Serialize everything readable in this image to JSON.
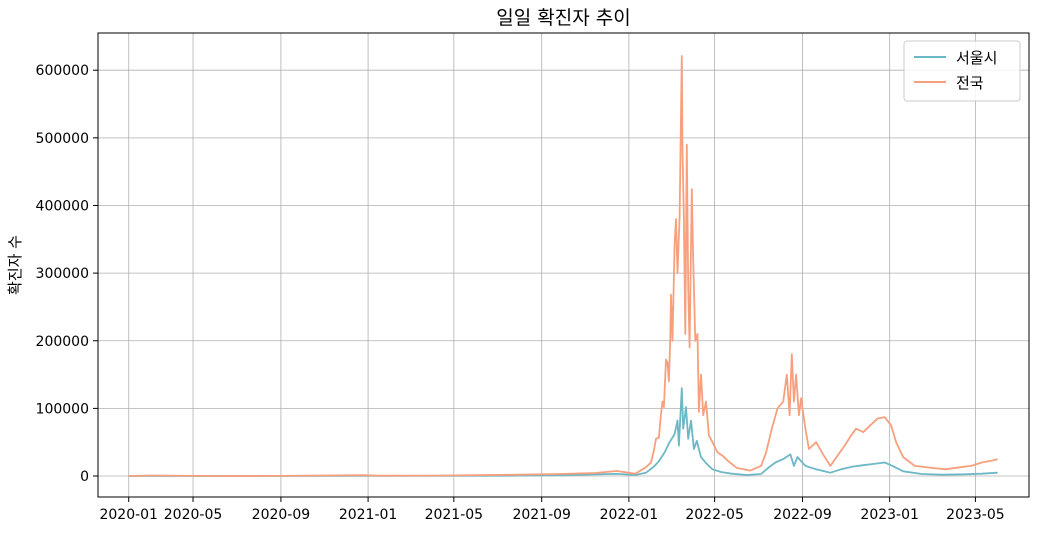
{
  "chart_data": {
    "type": "line",
    "title": "일일 확진자 추이",
    "xlabel": "",
    "ylabel": "확진자 수",
    "x_tick_labels": [
      "2020-01",
      "2020-05",
      "2020-09",
      "2021-01",
      "2021-05",
      "2021-09",
      "2022-01",
      "2022-05",
      "2022-09",
      "2023-01",
      "2023-05"
    ],
    "y_ticks": [
      0,
      100000,
      200000,
      300000,
      400000,
      500000,
      600000
    ],
    "y_tick_labels": [
      "0",
      "100000",
      "200000",
      "300000",
      "400000",
      "500000",
      "600000"
    ],
    "xlim": [
      "2019-12-20",
      "2023-07-15"
    ],
    "ylim": [
      -31000,
      655000
    ],
    "grid": true,
    "legend_position": "top-right",
    "series": [
      {
        "name": "서울시",
        "color": "#6db8c6",
        "points": [
          [
            "2020-02-01",
            0
          ],
          [
            "2020-06-01",
            20
          ],
          [
            "2020-09-01",
            60
          ],
          [
            "2020-12-15",
            350
          ],
          [
            "2021-01-10",
            250
          ],
          [
            "2021-04-01",
            150
          ],
          [
            "2021-07-15",
            550
          ],
          [
            "2021-09-25",
            1200
          ],
          [
            "2021-11-15",
            2500
          ],
          [
            "2021-12-15",
            3200
          ],
          [
            "2022-01-10",
            1500
          ],
          [
            "2022-01-25",
            5000
          ],
          [
            "2022-02-05",
            14000
          ],
          [
            "2022-02-12",
            22000
          ],
          [
            "2022-02-20",
            35000
          ],
          [
            "2022-02-27",
            50000
          ],
          [
            "2022-03-06",
            62000
          ],
          [
            "2022-03-10",
            82000
          ],
          [
            "2022-03-12",
            45000
          ],
          [
            "2022-03-16",
            130000
          ],
          [
            "2022-03-18",
            70000
          ],
          [
            "2022-03-22",
            102000
          ],
          [
            "2022-03-25",
            55000
          ],
          [
            "2022-03-29",
            82000
          ],
          [
            "2022-04-02",
            40000
          ],
          [
            "2022-04-06",
            52000
          ],
          [
            "2022-04-12",
            28000
          ],
          [
            "2022-04-20",
            18000
          ],
          [
            "2022-04-28",
            10000
          ],
          [
            "2022-05-10",
            6000
          ],
          [
            "2022-05-25",
            3500
          ],
          [
            "2022-06-15",
            1500
          ],
          [
            "2022-07-05",
            3000
          ],
          [
            "2022-07-15",
            12000
          ],
          [
            "2022-07-25",
            20000
          ],
          [
            "2022-08-05",
            25000
          ],
          [
            "2022-08-15",
            32000
          ],
          [
            "2022-08-20",
            15000
          ],
          [
            "2022-08-25",
            28000
          ],
          [
            "2022-09-05",
            15000
          ],
          [
            "2022-09-20",
            10000
          ],
          [
            "2022-10-10",
            5000
          ],
          [
            "2022-10-25",
            10000
          ],
          [
            "2022-11-10",
            14000
          ],
          [
            "2022-11-25",
            16000
          ],
          [
            "2022-12-10",
            18000
          ],
          [
            "2022-12-25",
            20000
          ],
          [
            "2023-01-05",
            15000
          ],
          [
            "2023-01-20",
            7000
          ],
          [
            "2023-02-15",
            3000
          ],
          [
            "2023-03-15",
            2000
          ],
          [
            "2023-04-15",
            2500
          ],
          [
            "2023-05-10",
            3500
          ],
          [
            "2023-06-01",
            5000
          ]
        ]
      },
      {
        "name": "전국",
        "color": "#f7a07e",
        "points": [
          [
            "2020-02-01",
            0
          ],
          [
            "2020-03-01",
            800
          ],
          [
            "2020-06-01",
            50
          ],
          [
            "2020-09-01",
            200
          ],
          [
            "2020-12-25",
            1200
          ],
          [
            "2021-01-15",
            500
          ],
          [
            "2021-04-01",
            600
          ],
          [
            "2021-07-20",
            1800
          ],
          [
            "2021-09-25",
            3000
          ],
          [
            "2021-11-15",
            4500
          ],
          [
            "2021-12-15",
            7500
          ],
          [
            "2022-01-10",
            3500
          ],
          [
            "2022-01-25",
            13000
          ],
          [
            "2022-02-01",
            20000
          ],
          [
            "2022-02-05",
            38000
          ],
          [
            "2022-02-08",
            55000
          ],
          [
            "2022-02-12",
            57000
          ],
          [
            "2022-02-15",
            92000
          ],
          [
            "2022-02-17",
            110000
          ],
          [
            "2022-02-19",
            102000
          ],
          [
            "2022-02-22",
            172000
          ],
          [
            "2022-02-24",
            168000
          ],
          [
            "2022-02-26",
            140000
          ],
          [
            "2022-02-28",
            205000
          ],
          [
            "2022-03-01",
            268000
          ],
          [
            "2022-03-03",
            200000
          ],
          [
            "2022-03-06",
            342000
          ],
          [
            "2022-03-08",
            380000
          ],
          [
            "2022-03-10",
            300000
          ],
          [
            "2022-03-13",
            383000
          ],
          [
            "2022-03-16",
            621000
          ],
          [
            "2022-03-17",
            480000
          ],
          [
            "2022-03-19",
            380000
          ],
          [
            "2022-03-21",
            210000
          ],
          [
            "2022-03-23",
            490000
          ],
          [
            "2022-03-25",
            280000
          ],
          [
            "2022-03-27",
            190000
          ],
          [
            "2022-03-30",
            424000
          ],
          [
            "2022-04-01",
            320000
          ],
          [
            "2022-04-04",
            200000
          ],
          [
            "2022-04-07",
            210000
          ],
          [
            "2022-04-09",
            95000
          ],
          [
            "2022-04-12",
            150000
          ],
          [
            "2022-04-15",
            90000
          ],
          [
            "2022-04-19",
            110000
          ],
          [
            "2022-04-23",
            60000
          ],
          [
            "2022-04-28",
            50000
          ],
          [
            "2022-05-05",
            35000
          ],
          [
            "2022-05-12",
            30000
          ],
          [
            "2022-05-20",
            22000
          ],
          [
            "2022-06-01",
            12000
          ],
          [
            "2022-06-20",
            8000
          ],
          [
            "2022-07-05",
            15000
          ],
          [
            "2022-07-12",
            35000
          ],
          [
            "2022-07-20",
            70000
          ],
          [
            "2022-07-28",
            100000
          ],
          [
            "2022-08-05",
            110000
          ],
          [
            "2022-08-10",
            150000
          ],
          [
            "2022-08-14",
            90000
          ],
          [
            "2022-08-17",
            180000
          ],
          [
            "2022-08-20",
            110000
          ],
          [
            "2022-08-23",
            150000
          ],
          [
            "2022-08-27",
            90000
          ],
          [
            "2022-08-30",
            115000
          ],
          [
            "2022-09-05",
            70000
          ],
          [
            "2022-09-10",
            40000
          ],
          [
            "2022-09-20",
            50000
          ],
          [
            "2022-10-01",
            30000
          ],
          [
            "2022-10-10",
            15000
          ],
          [
            "2022-10-20",
            30000
          ],
          [
            "2022-10-30",
            45000
          ],
          [
            "2022-11-08",
            60000
          ],
          [
            "2022-11-15",
            70000
          ],
          [
            "2022-11-25",
            65000
          ],
          [
            "2022-12-05",
            75000
          ],
          [
            "2022-12-15",
            85000
          ],
          [
            "2022-12-25",
            87000
          ],
          [
            "2023-01-03",
            75000
          ],
          [
            "2023-01-10",
            50000
          ],
          [
            "2023-01-20",
            28000
          ],
          [
            "2023-02-05",
            15000
          ],
          [
            "2023-03-01",
            12000
          ],
          [
            "2023-03-20",
            10000
          ],
          [
            "2023-04-10",
            13000
          ],
          [
            "2023-04-25",
            15000
          ],
          [
            "2023-05-10",
            20000
          ],
          [
            "2023-05-25",
            23000
          ],
          [
            "2023-06-01",
            25000
          ]
        ]
      }
    ]
  }
}
